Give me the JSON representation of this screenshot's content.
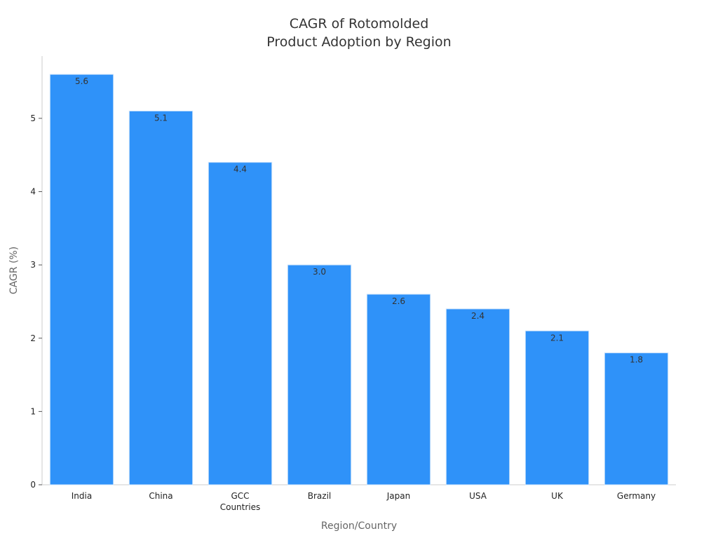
{
  "chart_data": {
    "type": "bar",
    "title": [
      "CAGR of Rotomolded",
      "Product Adoption by Region"
    ],
    "xlabel": "Region/Country",
    "ylabel": "CAGR (%)",
    "categories": [
      [
        "India"
      ],
      [
        "China"
      ],
      [
        "GCC",
        "Countries"
      ],
      [
        "Brazil"
      ],
      [
        "Japan"
      ],
      [
        "USA"
      ],
      [
        "UK"
      ],
      [
        "Germany"
      ]
    ],
    "values": [
      5.6,
      5.1,
      4.4,
      3.0,
      2.6,
      2.4,
      2.1,
      1.8
    ],
    "value_labels": [
      "5.6",
      "5.1",
      "4.4",
      "3.0",
      "2.6",
      "2.4",
      "2.1",
      "1.8"
    ],
    "yticks": [
      0,
      1,
      2,
      3,
      4,
      5
    ],
    "ylim": [
      0,
      5.85
    ],
    "grid": false,
    "bar_color": "#2f92f9",
    "bar_edge_color": "#cfe4fb",
    "axis_color": "#cccccc"
  }
}
